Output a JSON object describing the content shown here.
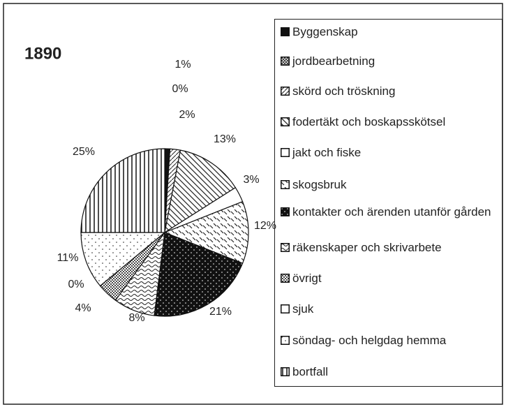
{
  "chart_data": {
    "type": "pie",
    "title": "1890",
    "categories": [
      "Byggenskap",
      "jordbearbetning",
      "skörd och tröskning",
      "fodertäkt och boskapsskötsel",
      "jakt och fiske",
      "skogsbruk",
      "kontakter och ärenden utanför gården",
      "räkenskaper och skrivarbete",
      "övrigt",
      "sjuk",
      "söndag- och helgdag hemma",
      "bortfall"
    ],
    "values": [
      1,
      0,
      2,
      13,
      3,
      12,
      21,
      8,
      4,
      0,
      11,
      25
    ],
    "value_labels": [
      "1%",
      "0%",
      "2%",
      "13%",
      "3%",
      "12%",
      "21%",
      "8%",
      "4%",
      "0%",
      "11%",
      "25%"
    ],
    "legend": "right"
  }
}
